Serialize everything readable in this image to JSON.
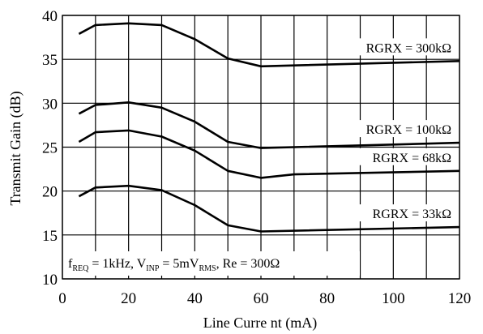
{
  "chart_data": {
    "type": "line",
    "xlabel": "Line Curre nt (mA)",
    "ylabel": "Transmit Gain (dB)",
    "xlim": [
      0,
      120
    ],
    "ylim": [
      10,
      40
    ],
    "x_ticks": [
      0,
      20,
      40,
      60,
      80,
      100,
      120
    ],
    "y_ticks": [
      10,
      15,
      20,
      25,
      30,
      35,
      40
    ],
    "grid": true,
    "legend": "inline labels",
    "series": [
      {
        "name": "RGRX = 300kΩ",
        "x": [
          5,
          10,
          20,
          30,
          40,
          50,
          60,
          120
        ],
        "y": [
          37.9,
          38.9,
          39.1,
          38.9,
          37.3,
          35.1,
          34.2,
          34.8
        ]
      },
      {
        "name": "RGRX = 100kΩ",
        "x": [
          5,
          10,
          20,
          30,
          40,
          50,
          60,
          120
        ],
        "y": [
          28.8,
          29.8,
          30.1,
          29.5,
          27.9,
          25.6,
          24.9,
          25.5
        ]
      },
      {
        "name": "RGRX = 68kΩ",
        "x": [
          5,
          10,
          20,
          30,
          40,
          50,
          60,
          70,
          120
        ],
        "y": [
          25.6,
          26.7,
          26.9,
          26.2,
          24.6,
          22.3,
          21.5,
          21.9,
          22.3
        ]
      },
      {
        "name": "RGRX = 33kΩ",
        "x": [
          5,
          10,
          20,
          30,
          40,
          50,
          60,
          120
        ],
        "y": [
          19.4,
          20.4,
          20.6,
          20.1,
          18.4,
          16.1,
          15.4,
          15.9
        ]
      }
    ],
    "annotation": {
      "f_main": "f",
      "f_sub": "REQ",
      "f_rest": " = 1kHz, V",
      "v_sub": "INP",
      "v_rest": " = 5mV",
      "rms_sub": "RMS",
      "tail": ",  Re = 300Ω"
    }
  }
}
